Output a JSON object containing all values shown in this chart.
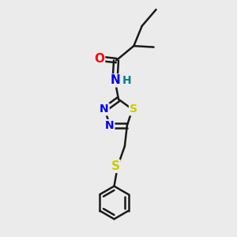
{
  "bg_color": "#ebebeb",
  "bond_color": "#1a1a1a",
  "bond_width": 1.8,
  "atom_colors": {
    "O": "#ff0000",
    "N": "#0000ee",
    "S": "#cccc00",
    "H": "#008080",
    "C": "#1a1a1a"
  },
  "font_size": 10,
  "figsize": [
    3.0,
    3.0
  ],
  "dpi": 100
}
